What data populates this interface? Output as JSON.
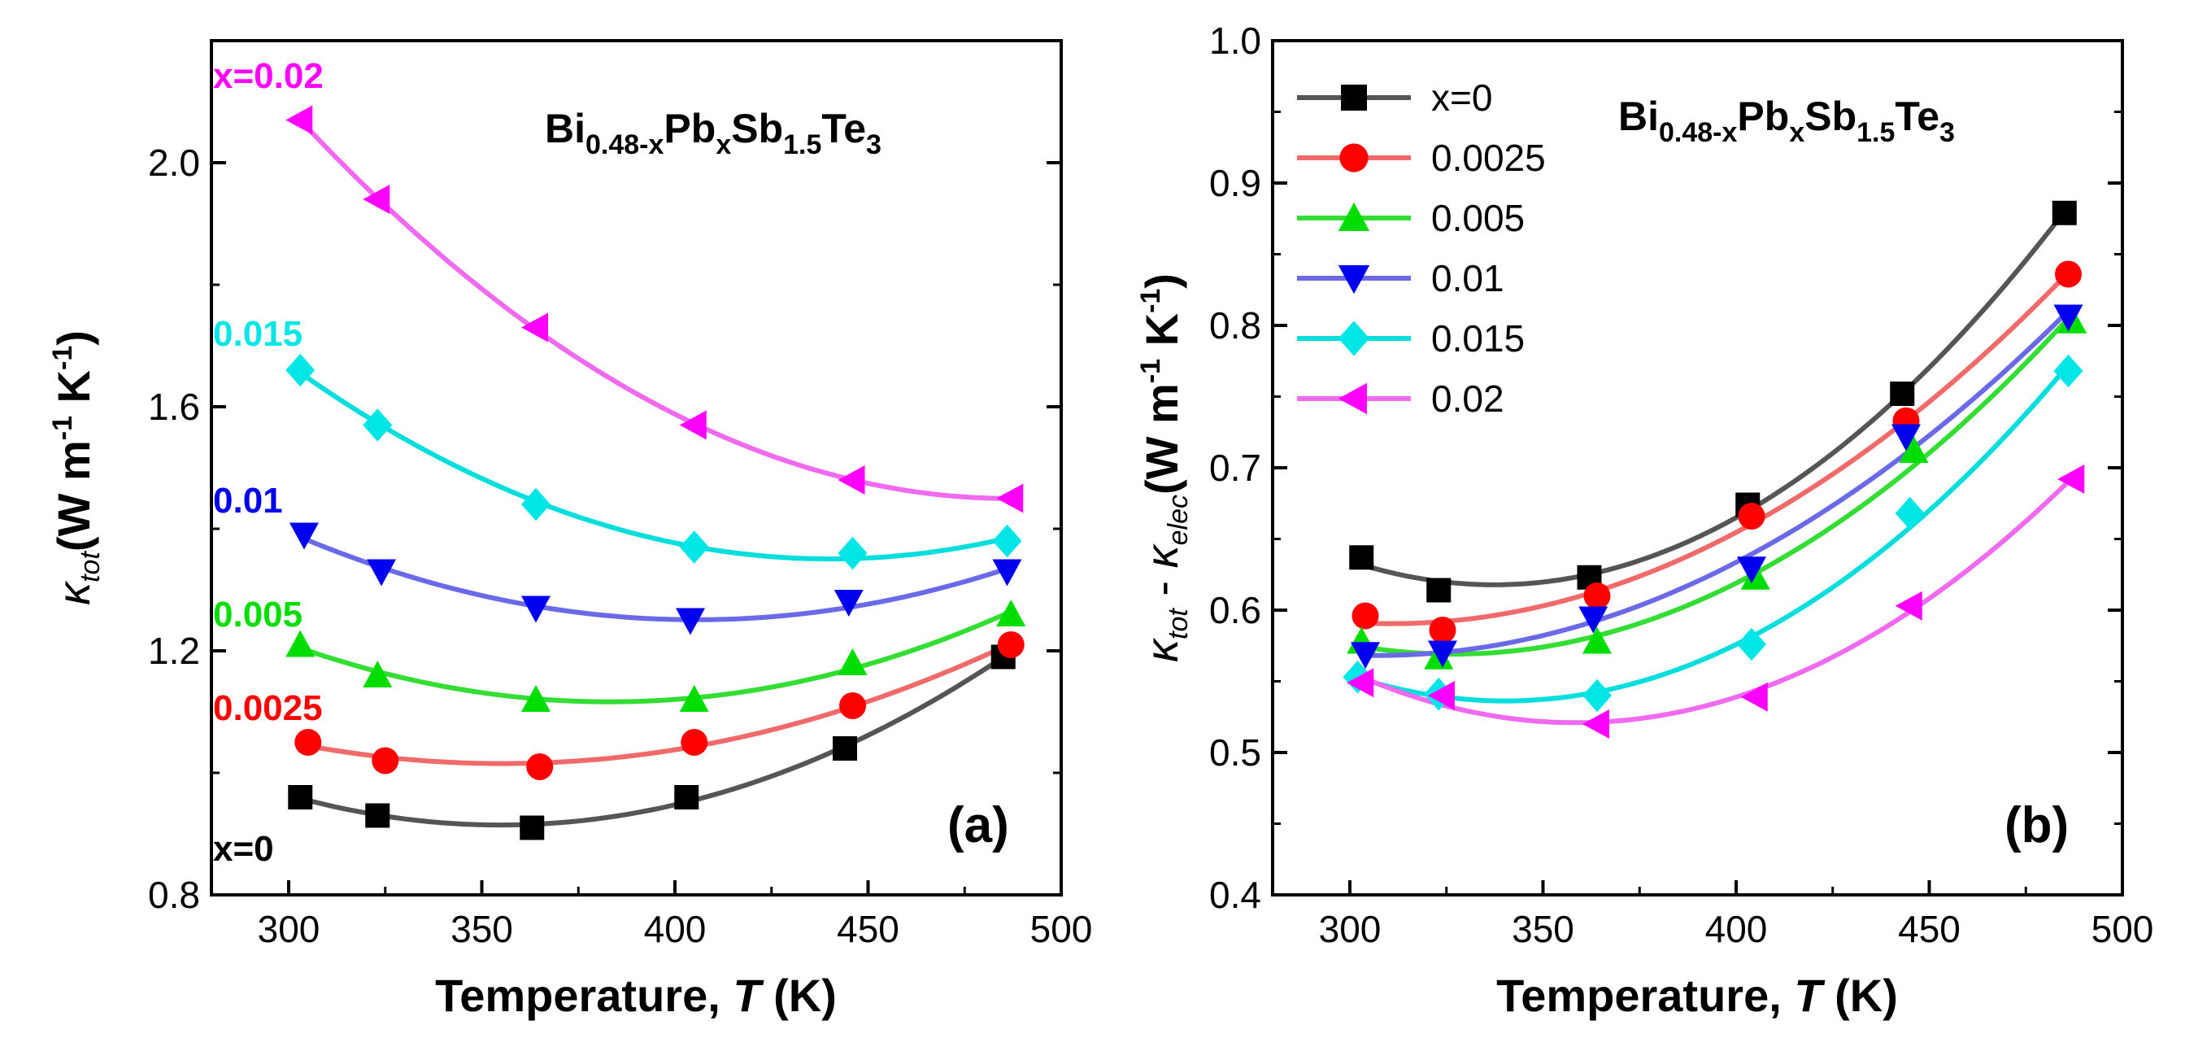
{
  "colors": {
    "x=0": "#000000",
    "0.0025": "#ff0000",
    "0.005": "#00dd00",
    "0.01": "#0000ee",
    "0.015": "#00e5e5",
    "0.02": "#ff00ff"
  },
  "chart_data": [
    {
      "type": "scatter",
      "panel_label": "(a)",
      "compound": "Bi0.48-xPbxSb1.5Te3",
      "xlabel": "Temperature, T (K)",
      "ylabel": "κtot(W m-1 K-1)",
      "xlim": [
        280,
        500
      ],
      "ylim": [
        0.8,
        2.2
      ],
      "xticks": [
        300,
        350,
        400,
        450,
        500
      ],
      "yticks": [
        0.8,
        1.2,
        1.6,
        2.0
      ],
      "tick_labels_x": [
        "300",
        "350",
        "400",
        "450",
        "500"
      ],
      "tick_labels_y": [
        "0.8",
        "1.2",
        "1.6",
        "2.0"
      ],
      "series": [
        {
          "name": "x=0",
          "label": "x=0",
          "marker": "square",
          "color": "#000000",
          "line_color": "#555555",
          "x": [
            303,
            323,
            363,
            403,
            444,
            485
          ],
          "values": [
            0.96,
            0.93,
            0.91,
            0.96,
            1.04,
            1.19
          ]
        },
        {
          "name": "0.0025",
          "label": "0.0025",
          "marker": "circle",
          "color": "#ff0000",
          "line_color": "#f06a6a",
          "x": [
            305,
            325,
            365,
            405,
            446,
            487
          ],
          "values": [
            1.05,
            1.02,
            1.01,
            1.05,
            1.11,
            1.21
          ]
        },
        {
          "name": "0.005",
          "label": "0.005",
          "marker": "triangle-up",
          "color": "#00dd00",
          "line_color": "#33dd33",
          "x": [
            303,
            323,
            364,
            405,
            446,
            487
          ],
          "values": [
            1.21,
            1.16,
            1.12,
            1.12,
            1.18,
            1.26
          ]
        },
        {
          "name": "0.01",
          "label": "0.01",
          "marker": "triangle-down",
          "color": "#0000ee",
          "line_color": "#6a6ae8",
          "x": [
            304,
            324,
            364,
            404,
            445,
            486
          ],
          "values": [
            1.39,
            1.33,
            1.27,
            1.25,
            1.28,
            1.33
          ]
        },
        {
          "name": "0.015",
          "label": "0.015",
          "marker": "diamond",
          "color": "#00e5e5",
          "line_color": "#00dddd",
          "x": [
            303,
            323,
            364,
            405,
            446,
            486
          ],
          "values": [
            1.66,
            1.57,
            1.44,
            1.37,
            1.36,
            1.38
          ]
        },
        {
          "name": "0.02",
          "label": "x=0.02",
          "marker": "triangle-left",
          "color": "#ff00ff",
          "line_color": "#ef6aef",
          "x": [
            303,
            323,
            364,
            405,
            446,
            487
          ],
          "values": [
            2.07,
            1.94,
            1.73,
            1.57,
            1.48,
            1.45
          ]
        }
      ]
    },
    {
      "type": "scatter",
      "panel_label": "(b)",
      "compound": "Bi0.48-xPbxSb1.5Te3",
      "xlabel": "Temperature, T (K)",
      "ylabel": "κtot - κelec(W m-1 K-1)",
      "xlim": [
        280,
        500
      ],
      "ylim": [
        0.4,
        1.0
      ],
      "xticks": [
        300,
        350,
        400,
        450,
        500
      ],
      "yticks": [
        0.4,
        0.5,
        0.6,
        0.7,
        0.8,
        0.9,
        1.0
      ],
      "tick_labels_x": [
        "300",
        "350",
        "400",
        "450",
        "500"
      ],
      "tick_labels_y": [
        "0.4",
        "0.5",
        "0.6",
        "0.7",
        "0.8",
        "0.9",
        "1.0"
      ],
      "legend": [
        "x=0",
        "0.0025",
        "0.005",
        "0.01",
        "0.015",
        "0.02"
      ],
      "legend_position": "top-left",
      "series": [
        {
          "name": "x=0",
          "label": "x=0",
          "marker": "square",
          "color": "#000000",
          "line_color": "#555555",
          "x": [
            303,
            323,
            362,
            403,
            443,
            485
          ],
          "values": [
            0.637,
            0.614,
            0.623,
            0.674,
            0.752,
            0.879
          ]
        },
        {
          "name": "0.0025",
          "label": "0.0025",
          "marker": "circle",
          "color": "#ff0000",
          "line_color": "#f06a6a",
          "x": [
            304,
            324,
            364,
            404,
            444,
            486
          ],
          "values": [
            0.596,
            0.586,
            0.61,
            0.666,
            0.733,
            0.836
          ]
        },
        {
          "name": "0.005",
          "label": "0.005",
          "marker": "triangle-up",
          "color": "#00dd00",
          "line_color": "#33dd33",
          "x": [
            303,
            323,
            364,
            405,
            446,
            487
          ],
          "values": [
            0.578,
            0.567,
            0.578,
            0.623,
            0.712,
            0.803
          ]
        },
        {
          "name": "0.01",
          "label": "0.01",
          "marker": "triangle-down",
          "color": "#0000ee",
          "line_color": "#6a6ae8",
          "x": [
            304,
            324,
            363,
            404,
            444,
            486
          ],
          "values": [
            0.569,
            0.57,
            0.594,
            0.629,
            0.722,
            0.806
          ]
        },
        {
          "name": "0.015",
          "label": "0.015",
          "marker": "diamond",
          "color": "#00e5e5",
          "line_color": "#00dddd",
          "x": [
            302,
            323,
            364,
            404,
            445,
            486
          ],
          "values": [
            0.553,
            0.541,
            0.54,
            0.576,
            0.668,
            0.768
          ]
        },
        {
          "name": "0.02",
          "label": "0.02",
          "marker": "triangle-left",
          "color": "#ff00ff",
          "line_color": "#ef6aef",
          "x": [
            303,
            324,
            364,
            405,
            445,
            487
          ],
          "values": [
            0.549,
            0.54,
            0.52,
            0.539,
            0.603,
            0.692
          ]
        }
      ]
    }
  ]
}
